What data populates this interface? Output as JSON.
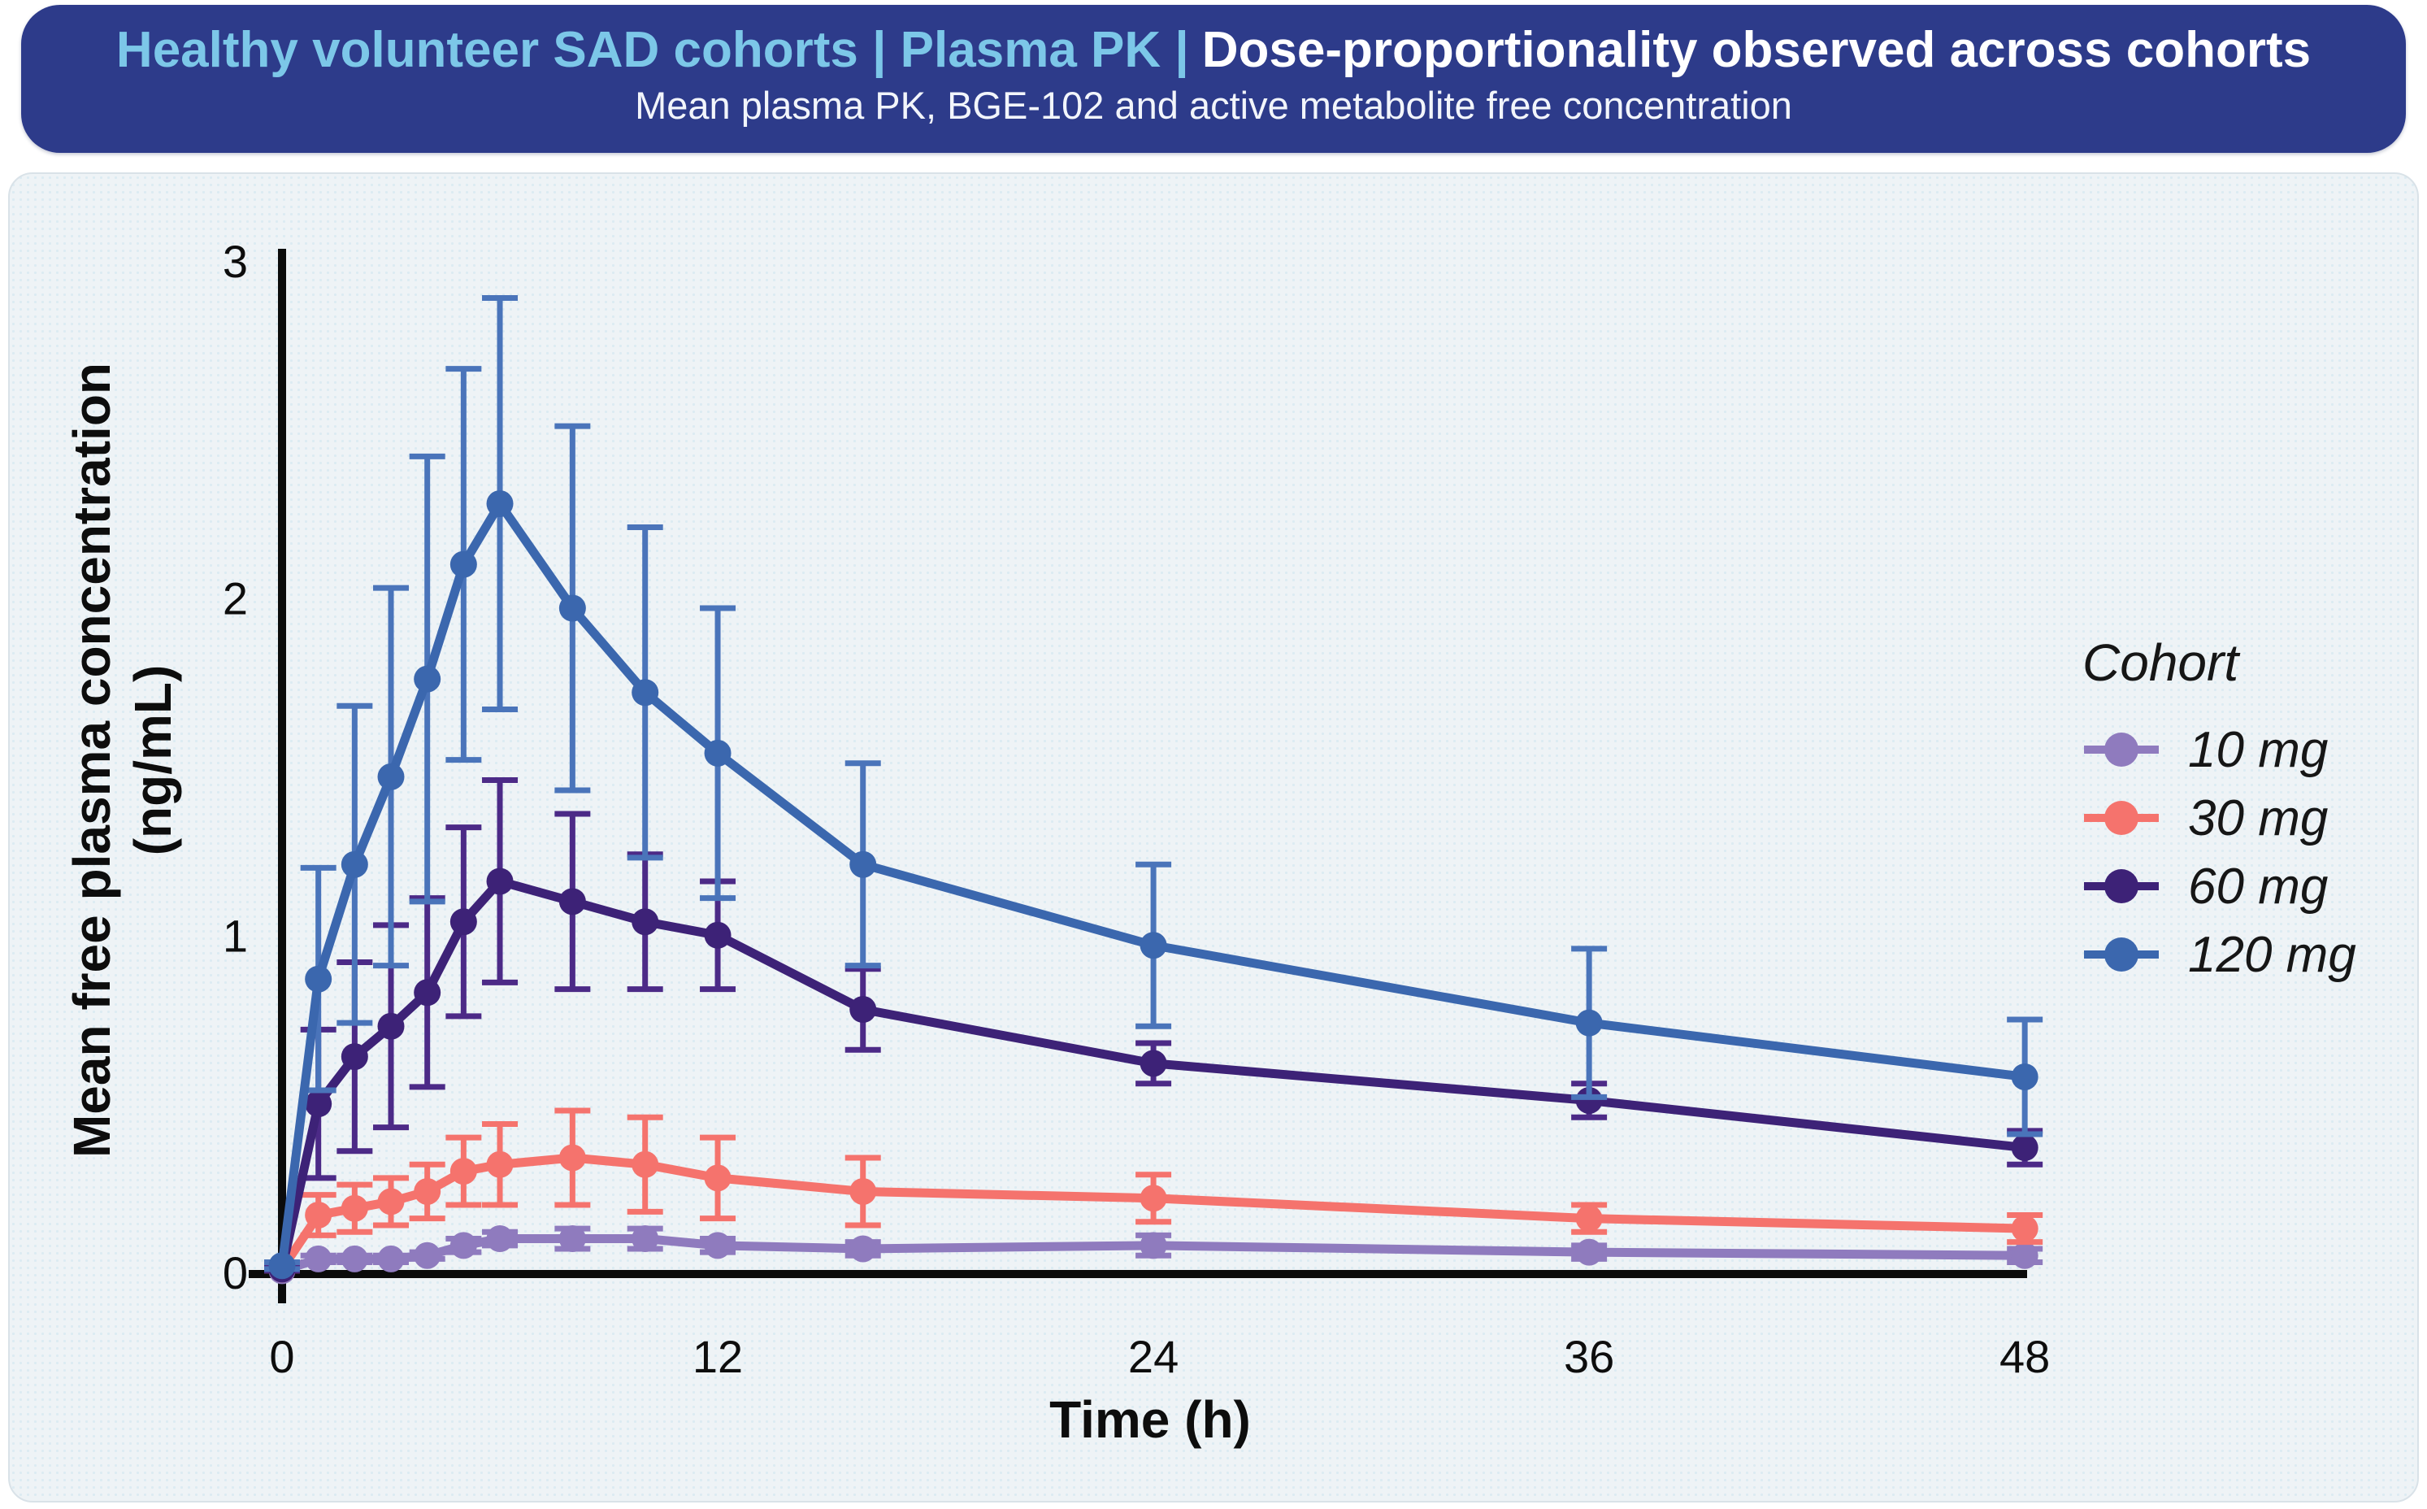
{
  "banner": {
    "title_highlight": "Healthy volunteer SAD cohorts | Plasma PK |",
    "title_rest": "Dose-proportionality observed across cohorts",
    "subtitle": "Mean plasma PK, BGE-102 and active metabolite free concentration",
    "colors": {
      "background": "#2d3b8a",
      "highlight_text": "#7cc7e8",
      "main_text": "#ffffff"
    }
  },
  "panel": {
    "background": "#eef3f6"
  },
  "chart_data": {
    "type": "line",
    "title": "",
    "xlabel": "Time (h)",
    "ylabel_line1": "Mean free plasma concentration",
    "ylabel_line2": "(ng/mL)",
    "xlim": [
      0,
      48
    ],
    "ylim": [
      0,
      3
    ],
    "x_ticks": [
      0,
      12,
      24,
      36,
      48
    ],
    "y_ticks": [
      0,
      1,
      2,
      3
    ],
    "grid": false,
    "legend_title": "Cohort",
    "legend_position": "right",
    "x": [
      0,
      1,
      2,
      3,
      4,
      5,
      6,
      8,
      10,
      12,
      16,
      24,
      36,
      48
    ],
    "series": [
      {
        "name": "10 mg",
        "color": "#8f7bbe",
        "error_color": "#8f7bbe",
        "values": [
          0.005,
          0.04,
          0.04,
          0.04,
          0.05,
          0.08,
          0.1,
          0.1,
          0.1,
          0.08,
          0.07,
          0.08,
          0.06,
          0.05
        ],
        "errors": [
          0.003,
          0.01,
          0.01,
          0.01,
          0.01,
          0.02,
          0.02,
          0.03,
          0.03,
          0.02,
          0.02,
          0.03,
          0.02,
          0.02
        ]
      },
      {
        "name": "30 mg",
        "color": "#f5736d",
        "error_color": "#f5736d",
        "values": [
          0.01,
          0.17,
          0.19,
          0.21,
          0.24,
          0.3,
          0.32,
          0.34,
          0.32,
          0.28,
          0.24,
          0.22,
          0.16,
          0.13
        ],
        "errors": [
          0.005,
          0.06,
          0.07,
          0.07,
          0.08,
          0.1,
          0.12,
          0.14,
          0.14,
          0.12,
          0.1,
          0.07,
          0.04,
          0.04
        ]
      },
      {
        "name": "60 mg",
        "color": "#3d2277",
        "error_color": "#4c2a87",
        "values": [
          0.01,
          0.5,
          0.64,
          0.73,
          0.83,
          1.04,
          1.16,
          1.1,
          1.04,
          1.0,
          0.78,
          0.62,
          0.51,
          0.37
        ],
        "errors": [
          0.005,
          0.22,
          0.28,
          0.3,
          0.28,
          0.28,
          0.3,
          0.26,
          0.2,
          0.16,
          0.12,
          0.06,
          0.05,
          0.05
        ]
      },
      {
        "name": "120 mg",
        "color": "#3b67ae",
        "error_color": "#4a74ba",
        "values": [
          0.02,
          0.87,
          1.21,
          1.47,
          1.76,
          2.1,
          2.28,
          1.97,
          1.72,
          1.54,
          1.21,
          0.97,
          0.74,
          0.58
        ],
        "errors": [
          0.01,
          0.33,
          0.47,
          0.56,
          0.66,
          0.58,
          0.61,
          0.54,
          0.49,
          0.43,
          0.3,
          0.24,
          0.22,
          0.17
        ]
      }
    ]
  }
}
